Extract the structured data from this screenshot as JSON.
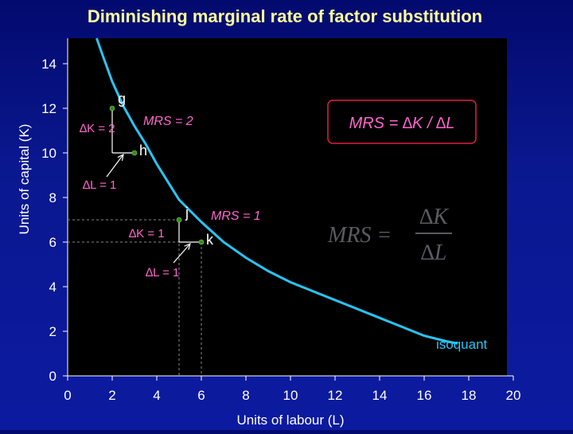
{
  "chart_data": {
    "type": "line",
    "title": "Diminishing marginal rate of factor substitution",
    "xlabel": "Units of labour (L)",
    "ylabel": "Units of capital (K)",
    "xlim": [
      0,
      20
    ],
    "ylim": [
      0,
      14
    ],
    "xticks": [
      0,
      2,
      4,
      6,
      8,
      10,
      12,
      14,
      16,
      18,
      20
    ],
    "yticks": [
      0,
      2,
      4,
      6,
      8,
      10,
      12,
      14
    ],
    "grid": false,
    "series": [
      {
        "name": "isoquant",
        "x": [
          1.3,
          1.6,
          2,
          2.5,
          3,
          3.5,
          4,
          4.5,
          5,
          5.5,
          6,
          7,
          8,
          9,
          10,
          11,
          12,
          13,
          14,
          15,
          16,
          17,
          17.5
        ],
        "y": [
          15.2,
          14.3,
          13.2,
          12.1,
          11.2,
          10.4,
          9.5,
          8.7,
          7.9,
          7.4,
          6.9,
          6.0,
          5.3,
          4.7,
          4.2,
          3.8,
          3.4,
          3.0,
          2.6,
          2.2,
          1.8,
          1.55,
          1.45
        ]
      }
    ],
    "points": [
      {
        "label": "g",
        "x": 2,
        "y": 12
      },
      {
        "label": "h",
        "x": 3,
        "y": 10
      },
      {
        "label": "j",
        "x": 5,
        "y": 7
      },
      {
        "label": "k",
        "x": 6,
        "y": 6
      }
    ],
    "annotations": {
      "dk1": "∆K = 2",
      "dl1": "∆L = 1",
      "mrs1": "MRS = 2",
      "dk2": "∆K = 1",
      "dl2": "∆L = 1",
      "mrs2": "MRS = 1",
      "formula_box": "MRS = ∆K / ∆L",
      "formula_num": "∆K",
      "formula_den": "∆L",
      "formula_lhs": "MRS =",
      "isoquant_label": "isoquant"
    }
  },
  "colors": {
    "background": "#0a1890",
    "plot_area": "#000000",
    "curve": "#29c4f4",
    "title": "#ffff99",
    "axis_text": "#ffffff",
    "accent": "#ff66cc",
    "box_border": "#e02040",
    "points": "#3a8a1a"
  }
}
